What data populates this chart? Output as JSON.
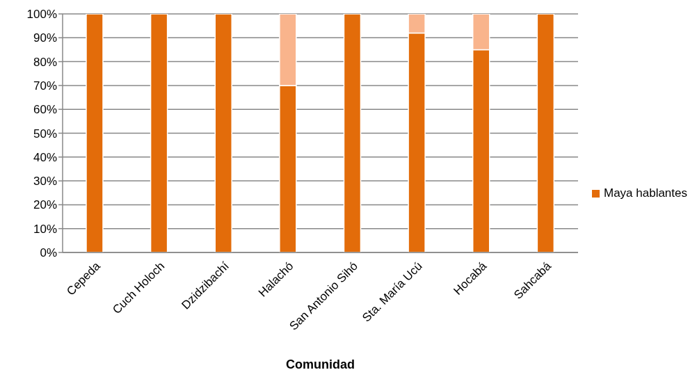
{
  "chart_data": {
    "type": "bar",
    "stacked": true,
    "xlabel": "Comunidad",
    "categories": [
      "Cepeda",
      "Cuch Holoch",
      "Dzidzibachí",
      "Halachó",
      "San Antonio Sihó",
      "Sta. María Ucú",
      "Hocabá",
      "Sahcabá"
    ],
    "series": [
      {
        "name": "Maya hablantes",
        "color": "#e36c0a",
        "values": [
          100,
          100,
          100,
          70,
          100,
          92,
          85,
          100
        ]
      },
      {
        "color": "#f9b48c",
        "values": [
          0,
          0,
          0,
          30,
          0,
          8,
          15,
          0
        ]
      }
    ],
    "ylim": [
      0,
      100
    ],
    "yticks": [
      {
        "value": 0,
        "label": "0%"
      },
      {
        "value": 10,
        "label": "10%"
      },
      {
        "value": 20,
        "label": "20%"
      },
      {
        "value": 30,
        "label": "30%"
      },
      {
        "value": 40,
        "label": "40%"
      },
      {
        "value": 50,
        "label": "50%"
      },
      {
        "value": 60,
        "label": "60%"
      },
      {
        "value": 70,
        "label": "70%"
      },
      {
        "value": 80,
        "label": "80%"
      },
      {
        "value": 90,
        "label": "90%"
      },
      {
        "value": 100,
        "label": "100%"
      }
    ],
    "grid": "y",
    "legend": "right"
  }
}
